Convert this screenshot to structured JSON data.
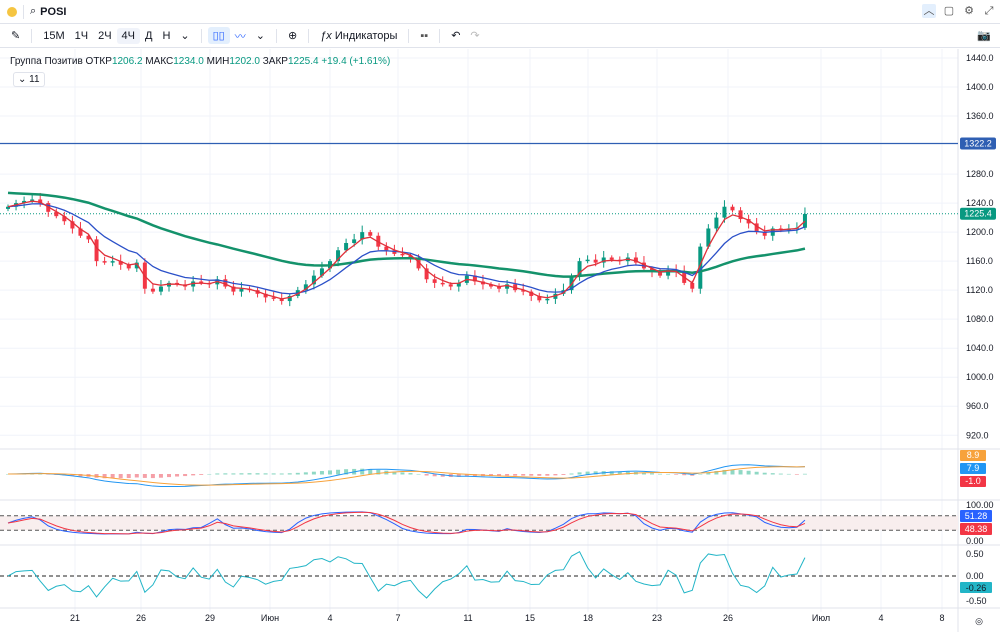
{
  "topbar": {
    "symbol": "POSI",
    "icons": [
      "chevron-up-icon",
      "window-icon",
      "gear-icon",
      "maximize-icon"
    ]
  },
  "toolbar": {
    "intervals": [
      "15М",
      "1Ч",
      "2Ч",
      "4Ч",
      "Д",
      "Н"
    ],
    "active_interval": "4Ч",
    "indicators_label": "Индикаторы"
  },
  "legend": {
    "name": "Группа Позитив",
    "open_label": "ОТКР",
    "open": "1206.2",
    "high_label": "МАКС",
    "high": "1234.0",
    "low_label": "МИН",
    "low": "1202.0",
    "close_label": "ЗАКР",
    "close": "1225.4",
    "change": "+19.4 (+1.61%)",
    "indicators_count": "11"
  },
  "chart_data": {
    "type": "candlestick",
    "price_axis": [
      "1440.0",
      "1400.0",
      "1360.0",
      "1280.0",
      "1240.0",
      "1200.0",
      "1160.0",
      "1120.0",
      "1080.0",
      "1040.0",
      "1000.0",
      "960.0",
      "920.0"
    ],
    "price_range": [
      900,
      1460
    ],
    "x_ticks": [
      "21",
      "26",
      "29",
      "Июн",
      "4",
      "7",
      "11",
      "15",
      "18",
      "23",
      "26",
      "Июл",
      "4",
      "8"
    ],
    "hline": {
      "value": 1322.2,
      "label": "1322.2",
      "color": "#2f5fb3"
    },
    "last_price": {
      "value": 1225.4,
      "label": "1225.4",
      "color": "#089981"
    },
    "closes": [
      1235,
      1240,
      1243,
      1245,
      1240,
      1228,
      1222,
      1215,
      1205,
      1195,
      1190,
      1160,
      1158,
      1160,
      1155,
      1150,
      1158,
      1122,
      1118,
      1125,
      1130,
      1128,
      1125,
      1132,
      1130,
      1128,
      1135,
      1125,
      1118,
      1122,
      1120,
      1115,
      1110,
      1108,
      1105,
      1112,
      1120,
      1128,
      1140,
      1150,
      1160,
      1175,
      1185,
      1190,
      1200,
      1195,
      1180,
      1175,
      1170,
      1168,
      1165,
      1150,
      1135,
      1130,
      1128,
      1125,
      1130,
      1140,
      1132,
      1128,
      1125,
      1122,
      1128,
      1120,
      1118,
      1112,
      1106,
      1108,
      1115,
      1120,
      1140,
      1160,
      1162,
      1158,
      1165,
      1162,
      1160,
      1165,
      1158,
      1150,
      1145,
      1140,
      1148,
      1145,
      1130,
      1122,
      1180,
      1205,
      1220,
      1235,
      1230,
      1218,
      1212,
      1200,
      1195,
      1205,
      1203,
      1205,
      1206,
      1225
    ],
    "colors": {
      "up": "#089981",
      "down": "#f23645",
      "ma_fast": "#e0303a",
      "ma_mid": "#2b50c8",
      "ma_slow": "#14926b"
    },
    "macd": {
      "labels": [
        "8.9",
        "7.9",
        "-1.0"
      ],
      "colors": [
        "#f7a23b",
        "#2196f3",
        "#f23645"
      ]
    },
    "stoch": {
      "labels": [
        "100.00",
        "51.28",
        "48.38",
        "0.00"
      ],
      "colors": [
        "#2962ff",
        "#f23645"
      ]
    },
    "osc": {
      "labels": [
        "0.50",
        "0.00",
        "-0.26",
        "-0.50"
      ],
      "color": "#22b5c7"
    }
  }
}
